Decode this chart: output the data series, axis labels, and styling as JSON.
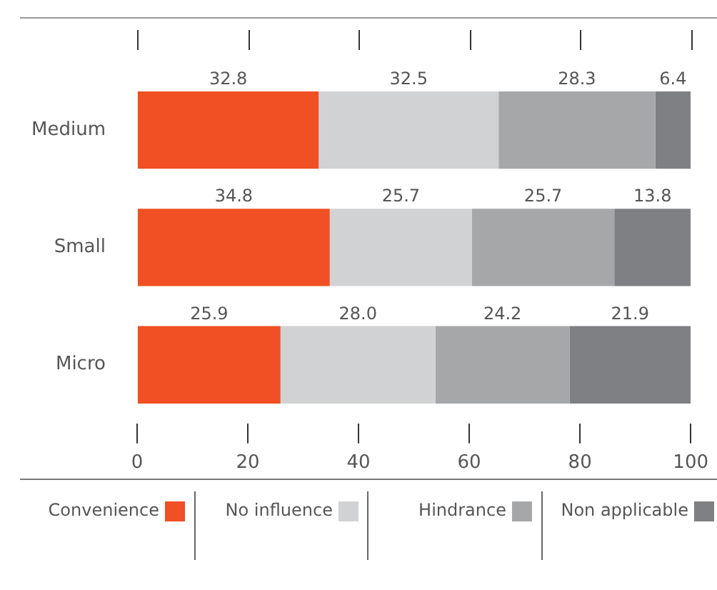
{
  "chart_data": {
    "type": "bar",
    "orientation": "horizontal",
    "stacked": true,
    "categories": [
      "Medium",
      "Small",
      "Micro"
    ],
    "series": [
      {
        "name": "Convenience",
        "color": "#f05023",
        "values": [
          32.8,
          34.8,
          25.9
        ],
        "value_labels": [
          "32.8",
          "34.8",
          "25.9"
        ]
      },
      {
        "name": "No influence",
        "color": "#d1d2d4",
        "values": [
          32.5,
          25.7,
          28.0
        ],
        "value_labels": [
          "32.5",
          "25.7",
          "28.0"
        ]
      },
      {
        "name": "Hindrance",
        "color": "#a6a7a9",
        "values": [
          28.3,
          25.7,
          24.2
        ],
        "value_labels": [
          "28.3",
          "25.7",
          "24.2"
        ]
      },
      {
        "name": "Non applicable",
        "color": "#7f8083",
        "values": [
          6.4,
          13.8,
          21.9
        ],
        "value_labels": [
          "6.4",
          "13.8",
          "21.9"
        ]
      }
    ],
    "xlim": [
      0,
      100
    ],
    "xticks": [
      0,
      20,
      40,
      60,
      80,
      100
    ],
    "grid": false,
    "legend": "bottom"
  }
}
